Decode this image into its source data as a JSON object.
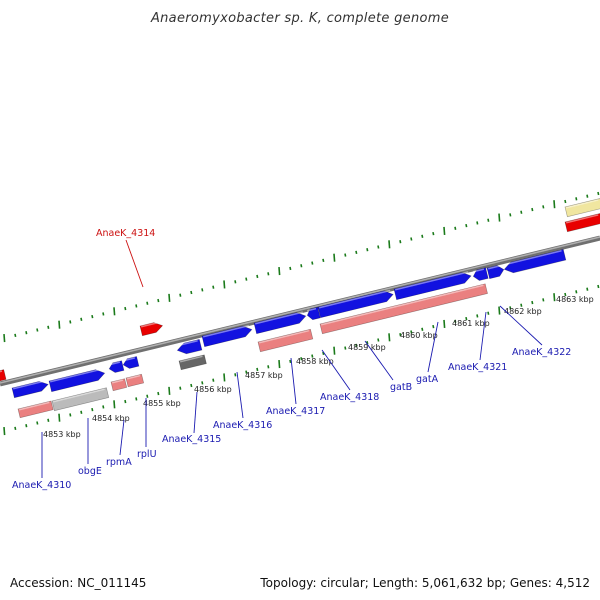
{
  "title": "Anaeromyxobacter sp. K, complete genome",
  "footer": {
    "accession": "Accession: NC_011145",
    "summary": "Topology: circular; Length: 5,061,632 bp; Genes: 4,512"
  },
  "colors": {
    "forward_gene": "#1212e0",
    "reverse_gene": "#1212e0",
    "rrna": "#e80000",
    "cds_track": "#ea8080",
    "pseudo": "#bbbbbb",
    "hypothetical": "#f0e6a0",
    "backbone": "#888888",
    "tick": "#1a7a1a",
    "label_blue": "#1a1ab0",
    "label_red": "#cc1111"
  },
  "kbp_labels": [
    "4853 kbp",
    "4854 kbp",
    "4855 kbp",
    "4856 kbp",
    "4857 kbp",
    "4858 kbp",
    "4859 kbp",
    "4860 kbp",
    "4861 kbp",
    "4862 kbp",
    "4863 kbp"
  ],
  "gene_labels": [
    {
      "name": "AnaeK_4310",
      "color": "blue"
    },
    {
      "name": "obgE",
      "color": "blue"
    },
    {
      "name": "rpmA",
      "color": "blue"
    },
    {
      "name": "rplU",
      "color": "blue"
    },
    {
      "name": "AnaeK_4315",
      "color": "blue"
    },
    {
      "name": "AnaeK_4316",
      "color": "blue"
    },
    {
      "name": "AnaeK_4317",
      "color": "blue"
    },
    {
      "name": "AnaeK_4318",
      "color": "blue"
    },
    {
      "name": "gatB",
      "color": "blue"
    },
    {
      "name": "gatA",
      "color": "blue"
    },
    {
      "name": "AnaeK_4321",
      "color": "blue"
    },
    {
      "name": "AnaeK_4322",
      "color": "blue"
    },
    {
      "name": "AnaeK_4314",
      "color": "red"
    }
  ]
}
